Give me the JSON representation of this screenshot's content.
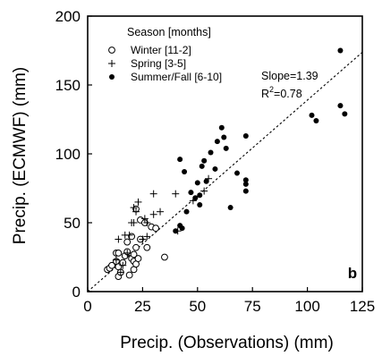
{
  "chart_data": {
    "type": "scatter",
    "xlabel": "Precip. (Observations)  (mm)",
    "ylabel": "Precip. (ECMWF)  (mm)",
    "xlim": [
      0,
      125
    ],
    "ylim": [
      0,
      200
    ],
    "x_ticks": [
      0,
      25,
      50,
      75,
      100,
      125
    ],
    "y_ticks": [
      0,
      50,
      100,
      150,
      200
    ],
    "grid": false,
    "legend": {
      "title": "Season [months]",
      "placement": "top-left",
      "entries": [
        {
          "label": "Winter   [11-2]",
          "marker": "open-circle"
        },
        {
          "label": "Spring   [3-5]",
          "marker": "plus"
        },
        {
          "label": "Summer/Fall [6-10]",
          "marker": "filled-circle"
        }
      ]
    },
    "annotations": {
      "slope": "Slope=1.39",
      "r2_prefix": "R",
      "r2_exp": "2",
      "r2_suffix": "=0.78",
      "panel_label": "b"
    },
    "fit_line": {
      "style": "dotted",
      "slope": 1.39,
      "intercept": 0
    },
    "series": [
      {
        "name": "Winter   [11-2]",
        "marker": "open-circle",
        "points": [
          [
            9,
            16
          ],
          [
            10,
            17
          ],
          [
            11,
            19
          ],
          [
            13,
            28
          ],
          [
            13,
            22
          ],
          [
            14,
            11
          ],
          [
            14,
            18
          ],
          [
            14,
            28
          ],
          [
            15,
            14
          ],
          [
            16,
            21
          ],
          [
            17,
            26
          ],
          [
            18,
            29
          ],
          [
            18,
            36
          ],
          [
            19,
            12
          ],
          [
            20,
            40
          ],
          [
            20,
            24
          ],
          [
            21,
            27
          ],
          [
            21,
            22
          ],
          [
            21,
            16
          ],
          [
            22,
            20
          ],
          [
            22,
            32
          ],
          [
            22,
            60
          ],
          [
            23,
            24
          ],
          [
            24,
            38
          ],
          [
            24,
            52
          ],
          [
            26,
            50
          ],
          [
            27,
            32
          ],
          [
            29,
            47
          ],
          [
            31,
            46
          ],
          [
            35,
            25
          ]
        ]
      },
      {
        "name": "Spring   [3-5]",
        "marker": "plus",
        "points": [
          [
            13,
            23
          ],
          [
            14,
            38
          ],
          [
            15,
            14
          ],
          [
            16,
            19
          ],
          [
            17,
            41
          ],
          [
            18,
            28
          ],
          [
            19,
            41
          ],
          [
            20,
            50
          ],
          [
            21,
            50
          ],
          [
            21,
            61
          ],
          [
            22,
            58
          ],
          [
            23,
            65
          ],
          [
            25,
            38
          ],
          [
            26,
            53
          ],
          [
            27,
            40
          ],
          [
            27,
            50
          ],
          [
            30,
            56
          ],
          [
            30,
            71
          ],
          [
            33,
            58
          ],
          [
            40,
            71
          ],
          [
            41,
            44
          ],
          [
            48,
            66
          ],
          [
            53,
            73
          ],
          [
            55,
            82
          ]
        ]
      },
      {
        "name": "Summer/Fall [6-10]",
        "marker": "filled-circle",
        "points": [
          [
            40,
            44
          ],
          [
            42,
            96
          ],
          [
            42,
            48
          ],
          [
            43,
            46
          ],
          [
            44,
            87
          ],
          [
            45,
            58
          ],
          [
            47,
            72
          ],
          [
            49,
            68
          ],
          [
            50,
            79
          ],
          [
            51,
            63
          ],
          [
            51,
            70
          ],
          [
            52,
            91
          ],
          [
            53,
            95
          ],
          [
            54,
            80
          ],
          [
            56,
            101
          ],
          [
            58,
            89
          ],
          [
            59,
            109
          ],
          [
            61,
            119
          ],
          [
            62,
            112
          ],
          [
            63,
            104
          ],
          [
            65,
            61
          ],
          [
            68,
            86
          ],
          [
            72,
            113
          ],
          [
            72,
            81
          ],
          [
            72,
            78
          ],
          [
            72,
            73
          ],
          [
            102,
            128
          ],
          [
            104,
            124
          ],
          [
            115,
            175
          ],
          [
            115,
            135
          ],
          [
            117,
            129
          ]
        ]
      }
    ]
  }
}
